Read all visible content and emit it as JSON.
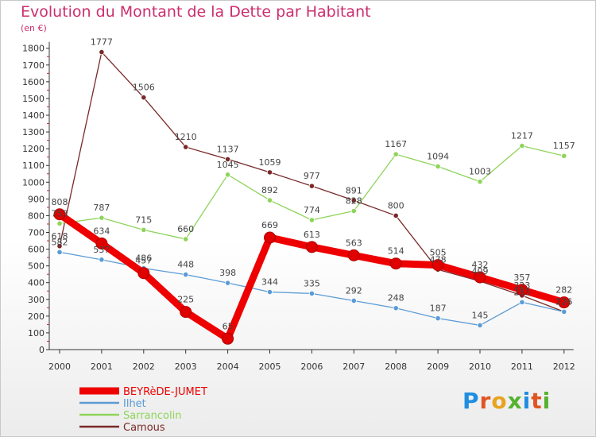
{
  "title": "Evolution du Montant de la Dette par Habitant",
  "unit": "(en €)",
  "logo": "Proxiti",
  "chart_data": {
    "type": "line",
    "x": [
      "2000",
      "2001",
      "2002",
      "2003",
      "2004",
      "2005",
      "2006",
      "2007",
      "2008",
      "2009",
      "2010",
      "2011",
      "2012"
    ],
    "ylim": [
      0,
      1800
    ],
    "yticks": [
      0,
      100,
      200,
      300,
      400,
      500,
      600,
      700,
      800,
      900,
      1000,
      1100,
      1200,
      1300,
      1400,
      1500,
      1600,
      1700,
      1800
    ],
    "grid": false,
    "legend_position": "bottom-left",
    "series": [
      {
        "name": "BEYRèDE-JUMET",
        "color": "#ee0000",
        "values": [
          808,
          634,
          457,
          225,
          65,
          669,
          613,
          563,
          514,
          505,
          432,
          357,
          282
        ]
      },
      {
        "name": "Ilhet",
        "color": "#5b9bd5",
        "values": [
          582,
          537,
          486,
          448,
          398,
          344,
          335,
          292,
          248,
          187,
          145,
          283,
          226
        ]
      },
      {
        "name": "Sarrancolin",
        "color": "#8fd45a",
        "values": [
          753,
          787,
          715,
          660,
          1045,
          892,
          774,
          828,
          1167,
          1094,
          1003,
          1217,
          1157
        ]
      },
      {
        "name": "Camous",
        "color": "#7a2828",
        "values": [
          618,
          1777,
          1506,
          1210,
          1137,
          1059,
          977,
          891,
          800,
          478,
          409,
          323,
          226
        ]
      }
    ]
  }
}
